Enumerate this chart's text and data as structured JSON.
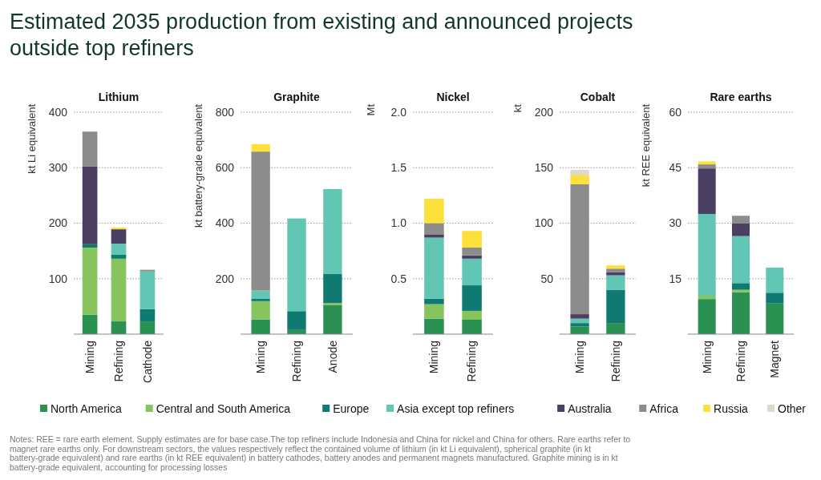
{
  "chart_data": [
    {
      "type": "bar",
      "stacked": true,
      "title": "Estimated 2035 production from existing and announced projects outside top refiners",
      "subtitle": "Lithium",
      "ylabel": "kt Li equivalent",
      "categories": [
        "Mining",
        "Refining",
        "Cathode"
      ],
      "ylim": [
        0,
        400
      ],
      "yticks": [
        100,
        200,
        300,
        400
      ],
      "grid": "y",
      "legend": "bottom",
      "annotations": [
        "Notes: REE = rare earth element. Supply estimates are for base case.The top refiners include Indonesia and China for nickel and China for others. Rare earths refer to magnet rare earths only. For downstream sectors, the values respectively reflect the contained volume of lithium (in kt Li equivalent), spherical graphite (in kt battery-grade equivalent) and rare earths (in kt REE equivalent) in battery cathodes, battery anodes and permanent magnets manufactured. Graphite mining is in kt battery-grade equivalent, accounting for processing losses"
      ],
      "series": [
        {
          "name": "North America",
          "color": "#2a9152",
          "values": [
            35,
            23,
            23
          ]
        },
        {
          "name": "Central and South America",
          "color": "#86c45e",
          "values": [
            121,
            113,
            null
          ]
        },
        {
          "name": "Europe",
          "color": "#0e7a72",
          "values": [
            6,
            7,
            22
          ]
        },
        {
          "name": "Asia except top refiners",
          "color": "#62c6b4",
          "values": [
            null,
            20,
            68
          ]
        },
        {
          "name": "Australia",
          "color": "#4a3f62",
          "values": [
            140,
            26,
            null
          ]
        },
        {
          "name": "Africa",
          "color": "#8c8c8c",
          "values": [
            63,
            null,
            3
          ]
        },
        {
          "name": "Russia",
          "color": "#fde03a",
          "values": [
            null,
            3,
            null
          ]
        },
        {
          "name": "Other",
          "color": "#ddd9c6",
          "values": [
            null,
            null,
            null
          ]
        }
      ]
    },
    {
      "type": "bar",
      "stacked": true,
      "subtitle": "Graphite",
      "ylabel": "kt battery-grade equivalent",
      "categories": [
        "Mining",
        "Refining",
        "Anode"
      ],
      "ylim": [
        0,
        800
      ],
      "yticks": [
        200,
        400,
        600,
        800
      ],
      "grid": "y",
      "series": [
        {
          "color": "#2a9152",
          "values": [
            53,
            15,
            104
          ]
        },
        {
          "color": "#86c45e",
          "values": [
            66,
            null,
            8
          ]
        },
        {
          "color": "#0e7a72",
          "values": [
            8,
            68,
            106
          ]
        },
        {
          "color": "#62c6b4",
          "values": [
            30,
            334,
            305
          ]
        },
        {
          "color": "#8c8c8c",
          "values": [
            501,
            null,
            null
          ]
        },
        {
          "color": "#fde03a",
          "values": [
            27,
            null,
            null
          ]
        }
      ]
    },
    {
      "type": "bar",
      "stacked": true,
      "subtitle": "Nickel",
      "ylabel": "Mt",
      "categories": [
        "Mining",
        "Refining"
      ],
      "ylim": [
        0,
        2
      ],
      "yticks": [
        {
          "value": 0.5,
          "label": "0.5"
        },
        {
          "value": 1,
          "label": "1.0"
        },
        {
          "value": 1.5,
          "label": "1.5"
        },
        {
          "value": 2,
          "label": "2.0"
        }
      ],
      "grid": "y",
      "series": [
        {
          "color": "#2a9152",
          "values": [
            0.14,
            0.13
          ]
        },
        {
          "color": "#86c45e",
          "values": [
            0.13,
            0.08
          ]
        },
        {
          "color": "#0e7a72",
          "values": [
            0.05,
            0.23
          ]
        },
        {
          "color": "#62c6b4",
          "values": [
            0.55,
            0.24
          ]
        },
        {
          "color": "#4a3f62",
          "values": [
            0.03,
            0.03
          ]
        },
        {
          "color": "#8c8c8c",
          "values": [
            0.1,
            0.07
          ]
        },
        {
          "color": "#fde03a",
          "values": [
            0.22,
            0.15
          ]
        }
      ]
    },
    {
      "type": "bar",
      "stacked": true,
      "subtitle": "Cobalt",
      "ylabel": "kt",
      "categories": [
        "Mining",
        "Refining"
      ],
      "ylim": [
        0,
        200
      ],
      "yticks": [
        50,
        100,
        150,
        200
      ],
      "grid": "y",
      "series": [
        {
          "color": "#2a9152",
          "values": [
            7,
            10
          ]
        },
        {
          "color": "#0e7a72",
          "values": [
            3,
            30
          ]
        },
        {
          "color": "#62c6b4",
          "values": [
            4,
            13
          ]
        },
        {
          "color": "#4a3f62",
          "values": [
            4,
            3
          ]
        },
        {
          "color": "#8c8c8c",
          "values": [
            117,
            3
          ]
        },
        {
          "color": "#fde03a",
          "values": [
            8,
            3
          ]
        },
        {
          "color": "#ddd9c6",
          "values": [
            5,
            null
          ]
        }
      ]
    },
    {
      "type": "bar",
      "stacked": true,
      "subtitle": "Rare earths",
      "ylabel": "kt REE equivalent",
      "categories": [
        "Mining",
        "Refining",
        "Magnet"
      ],
      "ylim": [
        0,
        60
      ],
      "yticks": [
        15,
        30,
        45,
        60
      ],
      "grid": "y",
      "series": [
        {
          "color": "#2a9152",
          "values": [
            9.5,
            11.3,
            8.4
          ]
        },
        {
          "color": "#86c45e",
          "values": [
            0.9,
            0.7,
            null
          ]
        },
        {
          "color": "#0e7a72",
          "values": [
            null,
            1.8,
            2.8
          ]
        },
        {
          "color": "#62c6b4",
          "values": [
            22.1,
            12.7,
            6.8
          ]
        },
        {
          "color": "#4a3f62",
          "values": [
            12.3,
            3.4,
            null
          ]
        },
        {
          "color": "#8c8c8c",
          "values": [
            1.1,
            2.1,
            null
          ]
        },
        {
          "color": "#fde03a",
          "values": [
            0.8,
            null,
            null
          ]
        }
      ]
    }
  ]
}
